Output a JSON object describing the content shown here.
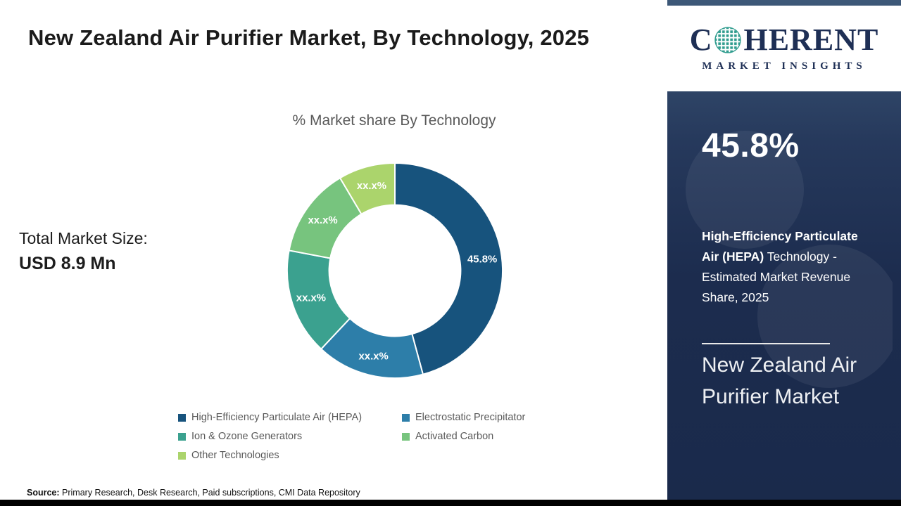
{
  "page": {
    "title": "New Zealand Air Purifier Market, By Technology, 2025"
  },
  "chart": {
    "subtitle": "% Market share By Technology"
  },
  "total_market": {
    "label": "Total Market Size:",
    "value": "USD 8.9 Mn"
  },
  "chart_data": {
    "type": "pie",
    "donut": true,
    "title": "% Market share By Technology",
    "categories": [
      "High-Efficiency Particulate Air (HEPA)",
      "Electrostatic Precipitator",
      "Ion & Ozone Generators",
      "Activated Carbon",
      "Other Technologies"
    ],
    "values": [
      45.8,
      16.2,
      16.0,
      13.5,
      8.5
    ],
    "display_labels": [
      "45.8%",
      "xx.x%",
      "xx.x%",
      "xx.x%",
      "xx.x%"
    ],
    "colors": [
      "#17537d",
      "#2d7ea9",
      "#3ba18f",
      "#77c47e",
      "#abd46c"
    ],
    "legend_position": "bottom"
  },
  "source": {
    "label": "Source:",
    "text": "Primary Research, Desk Research, Paid subscriptions, CMI Data Repository"
  },
  "sidebar": {
    "logo": {
      "prefix": "C",
      "suffix": "HERENT",
      "subtitle": "MARKET INSIGHTS"
    },
    "stat_value": "45.8%",
    "stat_description_bold": "High-Efficiency Particulate Air (HEPA)",
    "stat_description_rest": "Technology - Estimated Market Revenue Share, 2025",
    "market_title": "New Zealand Air Purifier Market"
  }
}
